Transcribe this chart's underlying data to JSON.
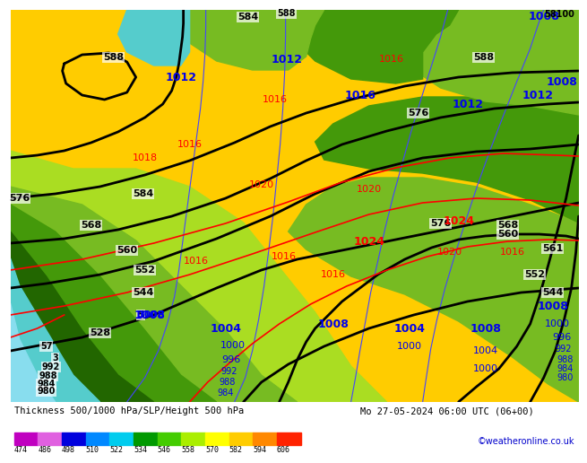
{
  "title_left": "Thickness 500/1000 hPa/SLP/Height 500 hPa",
  "title_right": "Mo 27-05-2024 06:00 UTC (06+00)",
  "watermark": "©weatheronline.co.uk",
  "colorbar_values": [
    474,
    486,
    498,
    510,
    522,
    534,
    546,
    558,
    570,
    582,
    594,
    606
  ],
  "colorbar_colors": [
    "#c000c0",
    "#e060e0",
    "#0000dd",
    "#0088ff",
    "#00ccee",
    "#009900",
    "#44cc00",
    "#aaee00",
    "#ffff00",
    "#ffcc00",
    "#ff8800",
    "#ff2200"
  ],
  "title_color": "#000000",
  "watermark_color": "#0000cc",
  "bg_yellow": "#ffcc00",
  "bg_lightyellow": "#ffdd44",
  "bg_green1": "#338800",
  "bg_green2": "#55aa00",
  "bg_green3": "#88cc22",
  "bg_cyan": "#44cccc",
  "bg_blue": "#66aaee"
}
